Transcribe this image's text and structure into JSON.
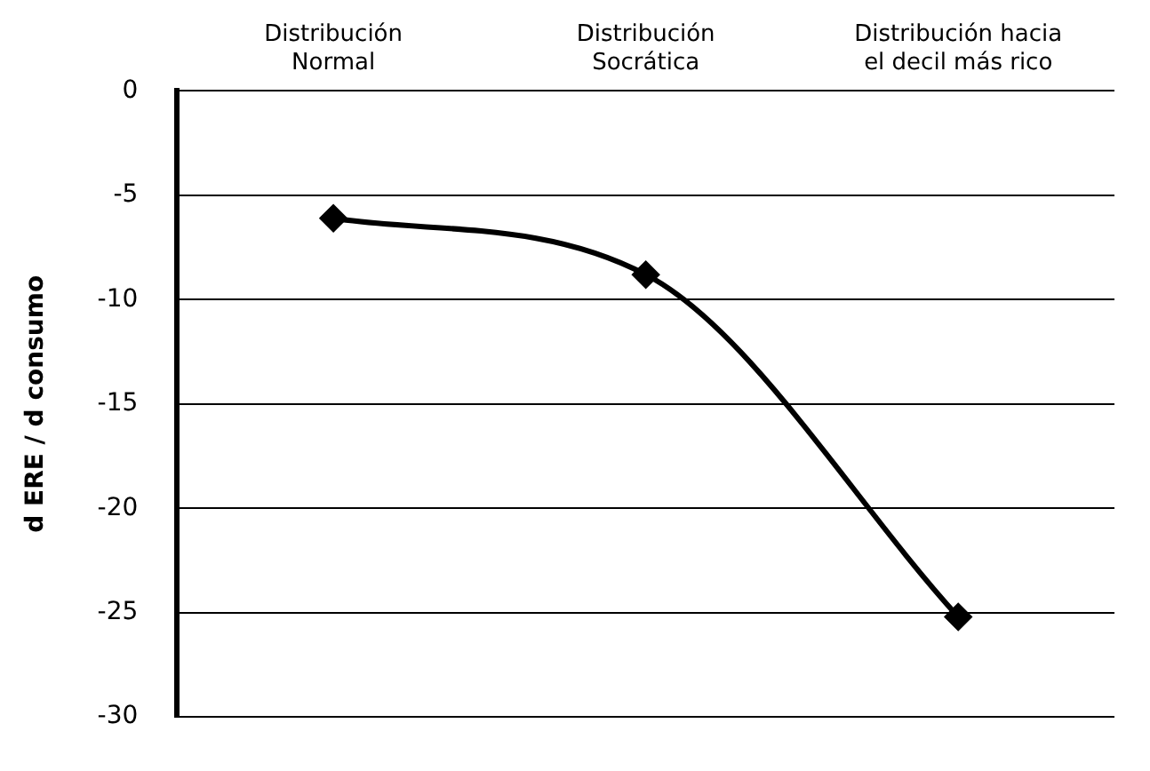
{
  "chart_data": {
    "type": "line",
    "ylabel": "d ERE / d consumo",
    "categories": [
      "Distribución\nNormal",
      "Distribución\nSocrática",
      "Distribución hacia\nel decil más rico"
    ],
    "values": [
      -6.1,
      -8.8,
      -25.2
    ],
    "color": "#000000",
    "ylim": [
      -30,
      0
    ],
    "yticks": [
      -30,
      -25,
      -20,
      -15,
      -10,
      -5,
      0
    ],
    "grid": "y",
    "legend": false,
    "marker": "diamond",
    "line_style": "solid"
  }
}
